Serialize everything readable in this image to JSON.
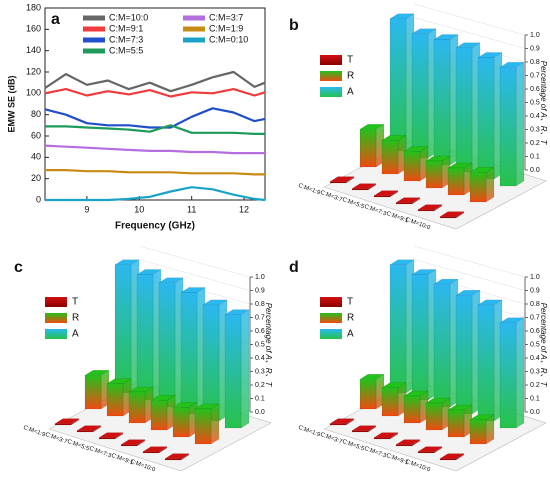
{
  "chart_data": [
    {
      "type": "line",
      "label": "a",
      "xlabel": "Frequency (GHz)",
      "ylabel": "EMW SE (dB)",
      "x": [
        8.2,
        8.6,
        9.0,
        9.4,
        9.8,
        10.2,
        10.6,
        11.0,
        11.4,
        11.8,
        12.2,
        12.4
      ],
      "xlim": [
        8.2,
        12.4
      ],
      "xticks": [
        9,
        10,
        11,
        12
      ],
      "ylim": [
        0,
        180
      ],
      "yticks": [
        0,
        20,
        40,
        60,
        80,
        100,
        120,
        140,
        160,
        180
      ],
      "series": [
        {
          "name": "C:M=10:0",
          "color": "#666666",
          "values": [
            105,
            118,
            108,
            112,
            104,
            110,
            102,
            108,
            115,
            120,
            106,
            110
          ]
        },
        {
          "name": "C:M=9:1",
          "color": "#ef3b3b",
          "values": [
            100,
            104,
            98,
            102,
            99,
            103,
            97,
            101,
            100,
            104,
            98,
            101
          ]
        },
        {
          "name": "C:M=7:3",
          "color": "#1f4fc9",
          "values": [
            85,
            80,
            72,
            70,
            70,
            68,
            68,
            78,
            86,
            82,
            74,
            76
          ]
        },
        {
          "name": "C:M=5:5",
          "color": "#1e9a5a",
          "values": [
            69,
            69,
            68,
            67,
            66,
            64,
            70,
            63,
            63,
            63,
            62,
            62
          ]
        },
        {
          "name": "C:M=3:7",
          "color": "#b46ee0",
          "values": [
            51,
            50,
            49,
            48,
            47,
            46,
            46,
            45,
            45,
            44,
            44,
            44
          ]
        },
        {
          "name": "C:M=1:9",
          "color": "#c98a14",
          "values": [
            28,
            28,
            27,
            27,
            26,
            26,
            26,
            25,
            25,
            25,
            24,
            24
          ]
        },
        {
          "name": "C:M=0:10",
          "color": "#1aa3c8",
          "values": [
            0,
            0,
            0,
            0,
            1,
            3,
            8,
            12,
            10,
            5,
            1,
            0
          ]
        }
      ]
    },
    {
      "type": "bar3d",
      "label": "b",
      "zlabel": "Percentage of A、R、T",
      "categories": [
        "C:M=1:9",
        "C:M=3:7",
        "C:M=5:5",
        "C:M=7:3",
        "C:M=9:1",
        "C:M=10:0"
      ],
      "zlim": [
        0,
        1
      ],
      "zticks": [
        {
          "value": 0,
          "label": "0.0"
        },
        0.1,
        0.2,
        0.3,
        0.4,
        0.5,
        0.6,
        0.7,
        0.8,
        0.9,
        {
          "value": 1,
          "label": "1.0"
        }
      ],
      "series": [
        {
          "name": "T",
          "colors": [
            "#d01010",
            "#8a0000"
          ],
          "values": [
            0.01,
            0.01,
            0.01,
            0.01,
            0.01,
            0.01
          ]
        },
        {
          "name": "R",
          "colors": [
            "#22c21a",
            "#f04a10"
          ],
          "values": [
            0.28,
            0.25,
            0.22,
            0.2,
            0.2,
            0.22
          ]
        },
        {
          "name": "A",
          "colors": [
            "#2ab8f0",
            "#27c24a"
          ],
          "values": [
            0.98,
            0.92,
            0.93,
            0.92,
            0.9,
            0.88
          ]
        }
      ]
    },
    {
      "type": "bar3d",
      "label": "c",
      "zlabel": "Percentage of A、R、T",
      "categories": [
        "C:M=1:9",
        "C:M=3:7",
        "C:M=5:5",
        "C:M=7:3",
        "C:M=9:1",
        "C:M=10:0"
      ],
      "zlim": [
        0,
        1
      ],
      "zticks": [
        {
          "value": 0,
          "label": "0.0"
        },
        0.1,
        0.2,
        0.3,
        0.4,
        0.5,
        0.6,
        0.7,
        0.8,
        0.9,
        {
          "value": 1,
          "label": "1.0"
        }
      ],
      "series": [
        {
          "name": "T",
          "colors": [
            "#d01010",
            "#8a0000"
          ],
          "values": [
            0.01,
            0.01,
            0.01,
            0.01,
            0.01,
            0.01
          ]
        },
        {
          "name": "R",
          "colors": [
            "#22c21a",
            "#f04a10"
          ],
          "values": [
            0.25,
            0.24,
            0.23,
            0.22,
            0.22,
            0.26
          ]
        },
        {
          "name": "A",
          "colors": [
            "#2ab8f0",
            "#27c24a"
          ],
          "values": [
            0.95,
            0.93,
            0.92,
            0.9,
            0.86,
            0.84
          ]
        }
      ]
    },
    {
      "type": "bar3d",
      "label": "d",
      "zlabel": "Percentage of A、R、T",
      "categories": [
        "C:M=1:9",
        "C:M=3:7",
        "C:M=5:5",
        "C:M=7:3",
        "C:M=9:1",
        "C:M=10:0"
      ],
      "zlim": [
        0,
        1
      ],
      "zticks": [
        {
          "value": 0,
          "label": "0.0"
        },
        0.1,
        0.2,
        0.3,
        0.4,
        0.5,
        0.6,
        0.7,
        0.8,
        0.9,
        {
          "value": 1,
          "label": "1.0"
        }
      ],
      "series": [
        {
          "name": "T",
          "colors": [
            "#d01010",
            "#8a0000"
          ],
          "values": [
            0.01,
            0.01,
            0.01,
            0.01,
            0.01,
            0.01
          ]
        },
        {
          "name": "R",
          "colors": [
            "#22c21a",
            "#f04a10"
          ],
          "values": [
            0.22,
            0.21,
            0.2,
            0.2,
            0.2,
            0.18
          ]
        },
        {
          "name": "A",
          "colors": [
            "#2ab8f0",
            "#27c24a"
          ],
          "values": [
            0.95,
            0.93,
            0.91,
            0.88,
            0.86,
            0.78
          ]
        }
      ]
    }
  ]
}
